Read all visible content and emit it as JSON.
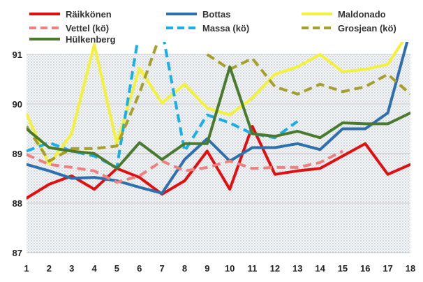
{
  "chart_data": {
    "type": "line",
    "x": [
      1,
      2,
      3,
      4,
      5,
      6,
      7,
      8,
      9,
      10,
      11,
      12,
      13,
      14,
      15,
      16,
      17,
      18
    ],
    "xlim": [
      1,
      18
    ],
    "ylim": [
      87,
      91
    ],
    "y_ticks": [
      87,
      88,
      89,
      90,
      91
    ],
    "grid": "horizontal",
    "legend_position": "top",
    "series": [
      {
        "name": "Räikkönen",
        "color": "#e01010",
        "dashed": false,
        "values": [
          88.1,
          88.38,
          88.55,
          88.28,
          88.7,
          88.52,
          88.18,
          88.45,
          89.05,
          88.28,
          89.55,
          88.58,
          88.65,
          88.7,
          88.95,
          89.2,
          88.58,
          88.78
        ]
      },
      {
        "name": "Bottas",
        "color": "#2e6fad",
        "dashed": false,
        "values": [
          88.78,
          88.65,
          88.5,
          88.52,
          88.45,
          88.32,
          88.2,
          88.88,
          89.3,
          88.85,
          89.12,
          89.12,
          89.2,
          89.08,
          89.5,
          89.5,
          89.82,
          91.5
        ]
      },
      {
        "name": "Maldonado",
        "color": "#f2f23a",
        "dashed": false,
        "values": [
          89.8,
          88.78,
          89.4,
          91.2,
          89.2,
          90.72,
          90.02,
          90.4,
          89.92,
          89.78,
          90.12,
          90.6,
          90.75,
          91.0,
          90.65,
          90.7,
          90.8,
          91.5
        ]
      },
      {
        "name": "Vettel (kö)",
        "color": "#f08080",
        "dashed": true,
        "values": [
          88.98,
          88.78,
          88.72,
          88.65,
          88.42,
          88.55,
          88.85,
          88.65,
          88.72,
          88.85,
          88.7,
          88.72,
          88.72,
          88.82,
          89.05,
          null,
          null,
          null
        ]
      },
      {
        "name": "Massa (kö)",
        "color": "#1aaee8",
        "dashed": true,
        "values": [
          89.05,
          89.22,
          89.05,
          88.95,
          88.72,
          91.5,
          91.5,
          89.05,
          89.78,
          89.62,
          89.4,
          89.32,
          89.65,
          null,
          null,
          null,
          null,
          null
        ]
      },
      {
        "name": "Grosjean (kö)",
        "color": "#a6a02a",
        "dashed": true,
        "values": [
          89.55,
          88.85,
          89.1,
          89.1,
          89.15,
          90.22,
          91.5,
          null,
          91.0,
          90.7,
          90.92,
          90.35,
          90.2,
          90.4,
          90.25,
          90.35,
          90.6,
          90.2
        ]
      },
      {
        "name": "Hülkenberg",
        "color": "#4a7a2e",
        "dashed": false,
        "values": [
          89.5,
          89.12,
          89.05,
          89.0,
          88.7,
          89.22,
          88.88,
          89.2,
          89.2,
          90.75,
          89.4,
          89.35,
          89.45,
          89.32,
          89.62,
          89.6,
          89.6,
          89.82
        ]
      }
    ]
  }
}
